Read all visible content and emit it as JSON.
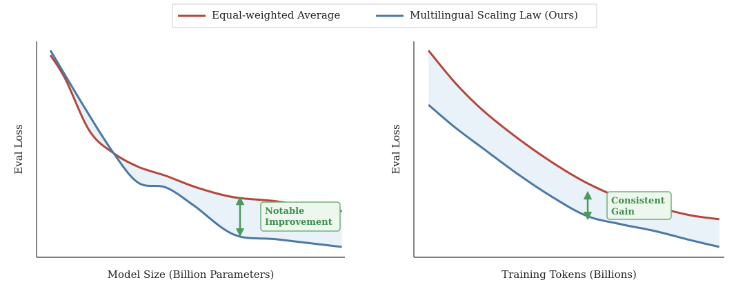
{
  "chart_data": [
    {
      "type": "line",
      "xlabel": "Model Size (Billion Parameters)",
      "ylabel": "Eval Loss",
      "xlim": [
        0,
        100
      ],
      "ylim": [
        0,
        100
      ],
      "annotation": "Notable Improvement",
      "series": [
        {
          "name": "Equal-weighted Average",
          "color": "#b5473a",
          "x": [
            4.5,
            9.4,
            17.2,
            25,
            33,
            42,
            52,
            64,
            78,
            99
          ],
          "values": [
            93.6,
            82.4,
            58.5,
            48.2,
            41.9,
            37.7,
            32.3,
            27.8,
            25.9,
            21.4
          ]
        },
        {
          "name": "Multilingual Scaling Law (Ours)",
          "color": "#4a79a5",
          "x": [
            4.5,
            16.1,
            25,
            33,
            42,
            51,
            64,
            78,
            99
          ],
          "values": [
            95.8,
            68.1,
            48.2,
            34.5,
            32.3,
            24,
            10.5,
            8.3,
            4.8
          ]
        }
      ]
    },
    {
      "type": "line",
      "xlabel": "Training Tokens (Billions)",
      "ylabel": "Eval Loss",
      "xlim": [
        0,
        100
      ],
      "ylim": [
        0,
        100
      ],
      "annotation": "Consistent Gain",
      "series": [
        {
          "name": "Equal-weighted Average",
          "color": "#b5473a",
          "x": [
            4.7,
            13.3,
            22.2,
            33.3,
            44.4,
            55.6,
            66.7,
            77.8,
            88.9,
            98.4
          ],
          "values": [
            95.8,
            80.8,
            68.1,
            55.3,
            44.1,
            34.5,
            27.5,
            23.3,
            19.5,
            17.6
          ]
        },
        {
          "name": "Multilingual Scaling Law (Ours)",
          "color": "#4a79a5",
          "x": [
            4.7,
            13.3,
            22.2,
            33.3,
            44.4,
            55.6,
            66.7,
            77.8,
            88.9,
            98.4
          ],
          "values": [
            70.6,
            60.1,
            50.5,
            38.7,
            28.1,
            19.2,
            15.3,
            12.1,
            8,
            4.8
          ]
        }
      ]
    }
  ]
}
